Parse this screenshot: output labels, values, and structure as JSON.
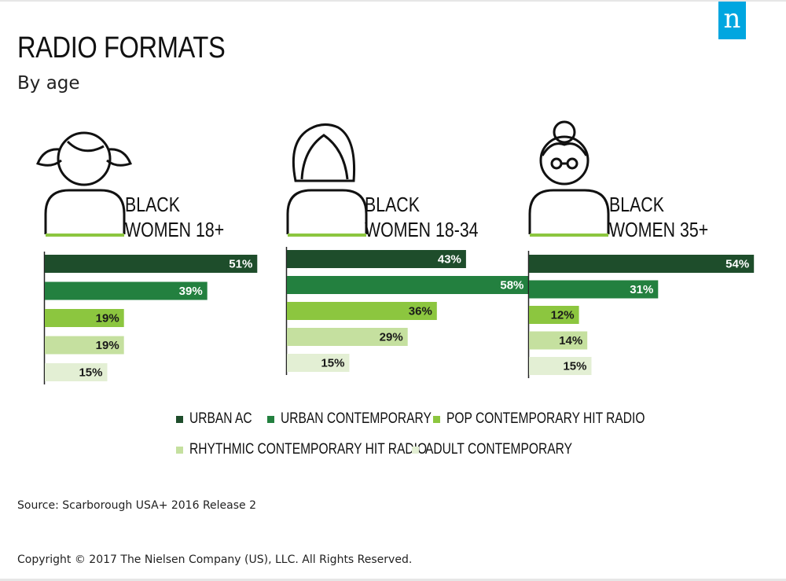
{
  "header": {
    "title": "RADIO FORMATS",
    "subtitle": "By age",
    "logo_letter": "n"
  },
  "colors": {
    "urban_ac": "#1e4d2b",
    "urban_contemporary": "#23803f",
    "pop_chr": "#8cc63f",
    "rhythmic_chr": "#c5e09f",
    "adult_contemporary": "#e3efd4",
    "accent_line": "#8cc63f",
    "logo": "#00a6e0"
  },
  "chart_data": [
    {
      "type": "bar",
      "title": "BLACK WOMEN 18+",
      "categories": [
        "URBAN AC",
        "URBAN CONTEMPORARY",
        "POP CONTEMPORARY HIT RADIO",
        "RHYTHMIC CONTEMPORARY HIT RADIO",
        "ADULT CONTEMPORARY"
      ],
      "values": [
        51,
        39,
        19,
        19,
        15
      ],
      "labels": [
        "51%",
        "39%",
        "19%",
        "19%",
        "15%"
      ],
      "unit": "%"
    },
    {
      "type": "bar",
      "title": "BLACK WOMEN 18-34",
      "categories": [
        "URBAN AC",
        "URBAN CONTEMPORARY",
        "POP CONTEMPORARY HIT RADIO",
        "RHYTHMIC CONTEMPORARY HIT RADIO",
        "ADULT CONTEMPORARY"
      ],
      "values": [
        43,
        58,
        36,
        29,
        15
      ],
      "labels": [
        "43%",
        "58%",
        "36%",
        "29%",
        "15%"
      ],
      "unit": "%"
    },
    {
      "type": "bar",
      "title": "BLACK WOMEN 35+",
      "categories": [
        "URBAN AC",
        "URBAN CONTEMPORARY",
        "POP CONTEMPORARY HIT RADIO",
        "RHYTHMIC CONTEMPORARY HIT RADIO",
        "ADULT CONTEMPORARY"
      ],
      "values": [
        54,
        31,
        12,
        14,
        15
      ],
      "labels": [
        "54%",
        "31%",
        "12%",
        "14%",
        "15%"
      ],
      "unit": "%"
    }
  ],
  "groups": [
    {
      "label_line1": "BLACK",
      "label_line2": "WOMEN 18+",
      "icon": "girl-pigtails-icon"
    },
    {
      "label_line1": "BLACK",
      "label_line2": "WOMEN 18-34",
      "icon": "woman-long-hair-icon"
    },
    {
      "label_line1": "BLACK",
      "label_line2": "WOMEN 35+",
      "icon": "older-woman-bun-glasses-icon"
    }
  ],
  "legend": {
    "items": [
      {
        "label": "URBAN AC",
        "color": "#1e4d2b"
      },
      {
        "label": "URBAN CONTEMPORARY",
        "color": "#23803f"
      },
      {
        "label": "POP CONTEMPORARY HIT RADIO",
        "color": "#8cc63f"
      },
      {
        "label": "RHYTHMIC CONTEMPORARY HIT RADIO",
        "color": "#c5e09f"
      },
      {
        "label": "ADULT CONTEMPORARY",
        "color": "#e3efd4"
      }
    ]
  },
  "footer": {
    "source": "Source: Scarborough USA+ 2016 Release 2",
    "copyright": "Copyright © 2017 The Nielsen Company (US), LLC. All Rights Reserved."
  }
}
